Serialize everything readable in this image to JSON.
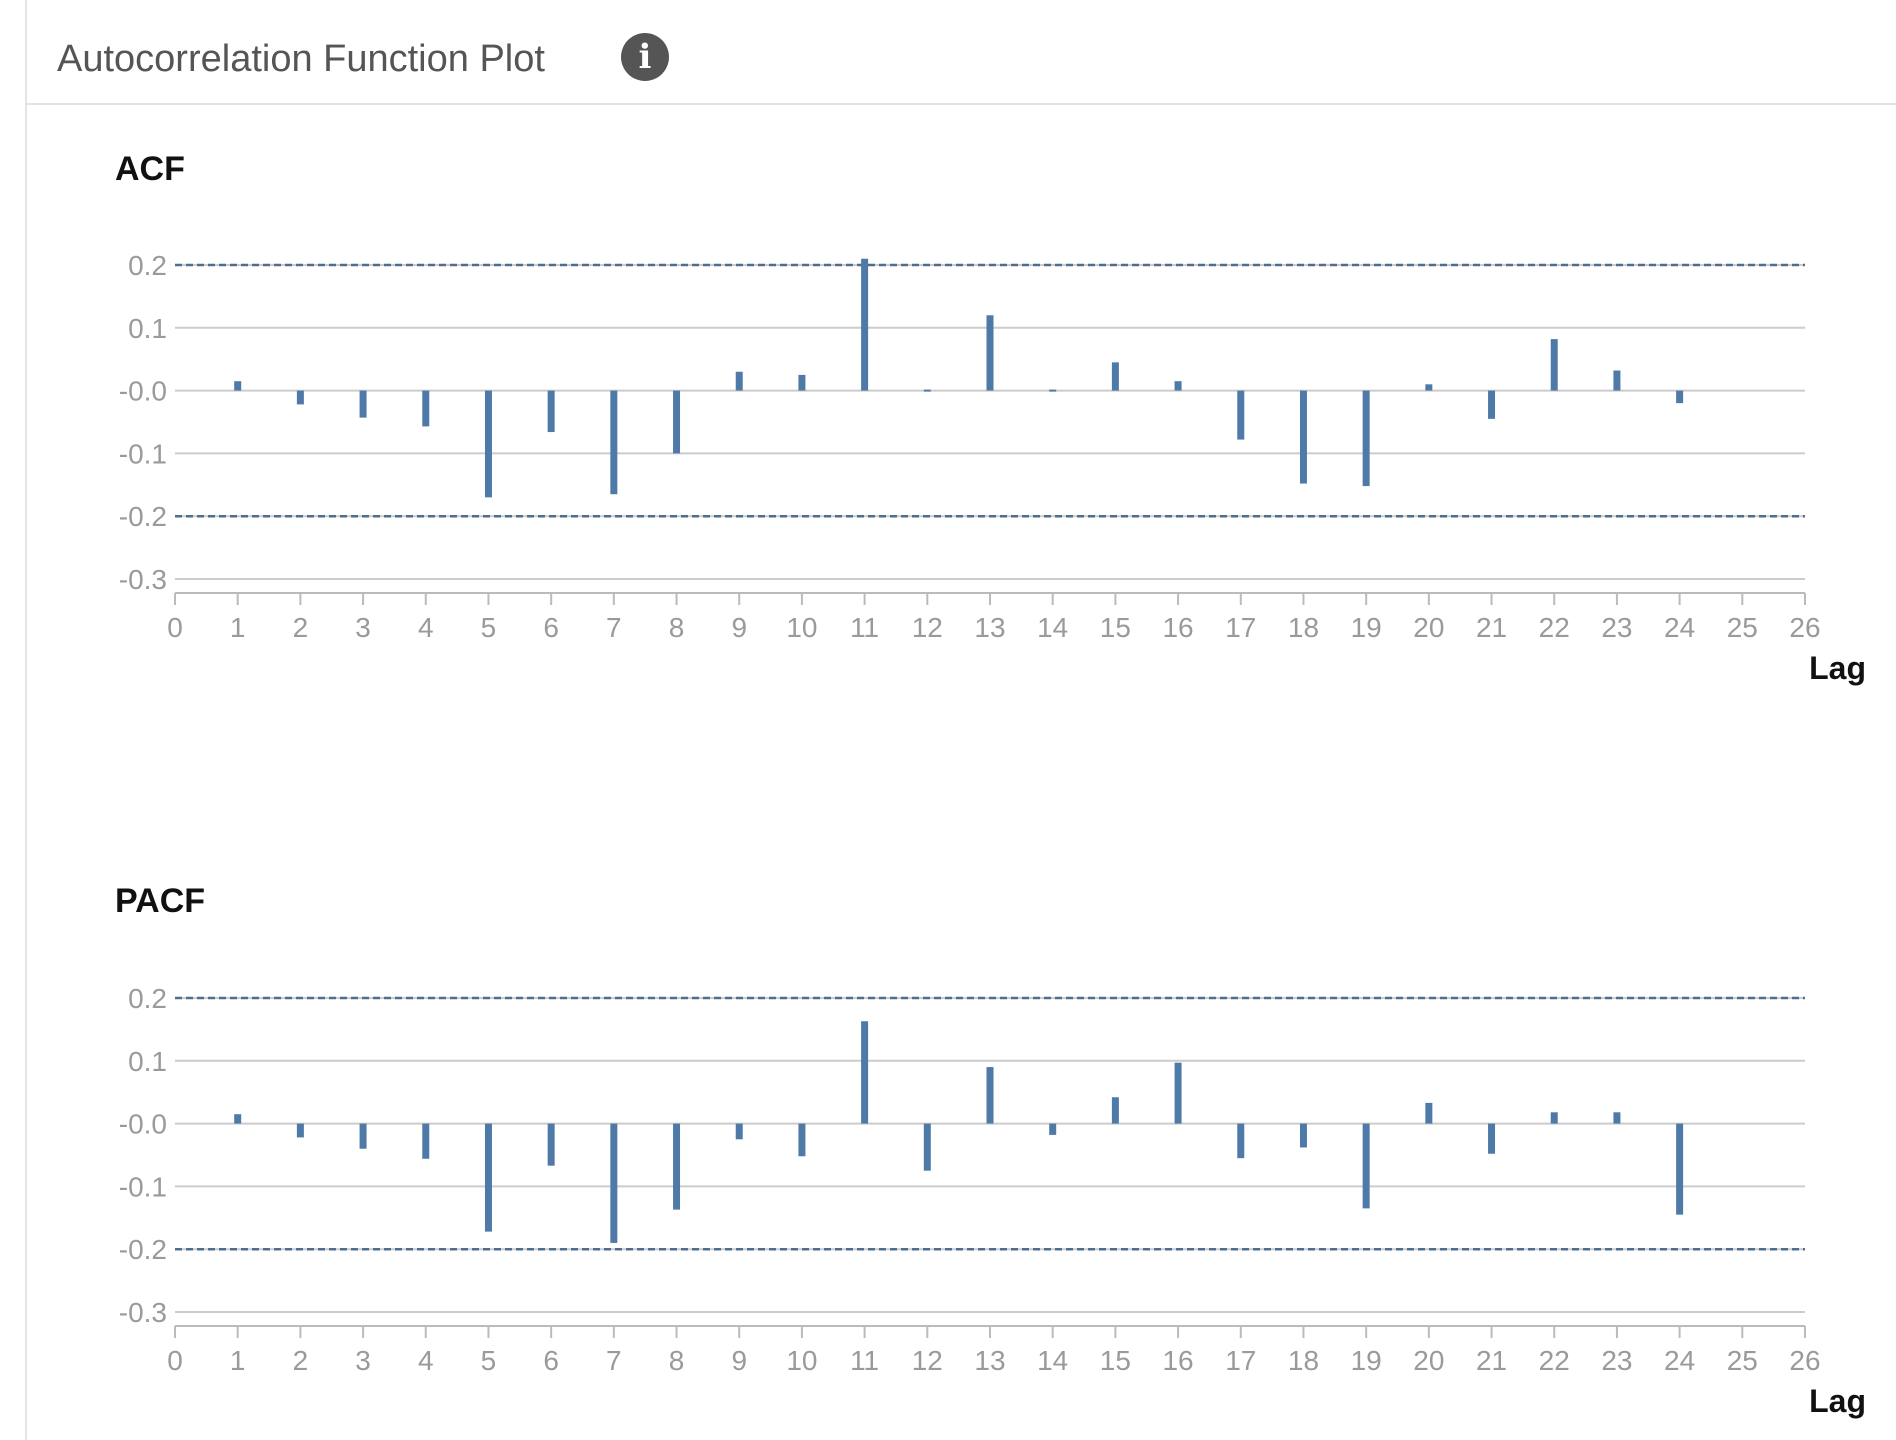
{
  "panel": {
    "title": "Autocorrelation Function Plot",
    "info_icon": "info-circle-icon"
  },
  "colors": {
    "bar": "#4f7aa8",
    "confidence_line": "#4f6d8e",
    "grid": "#cccccc",
    "tick_label": "#9a9a9a"
  },
  "chart_data": [
    {
      "type": "bar",
      "title": "ACF",
      "xlabel": "Lag",
      "ylabel": "",
      "x_ticks": [
        0,
        1,
        2,
        3,
        4,
        5,
        6,
        7,
        8,
        9,
        10,
        11,
        12,
        13,
        14,
        15,
        16,
        17,
        18,
        19,
        20,
        21,
        22,
        23,
        24,
        25,
        26
      ],
      "y_ticks": [
        0.2,
        0.1,
        -0.0,
        -0.1,
        -0.2,
        -0.3
      ],
      "y_tick_labels": [
        "0.2",
        "0.1",
        "-0.0",
        "-0.1",
        "-0.2",
        "-0.3"
      ],
      "xlim": [
        0,
        26
      ],
      "ylim": [
        -0.3,
        0.2
      ],
      "confidence_bounds": [
        0.2,
        -0.2
      ],
      "grid": true,
      "x": [
        1,
        2,
        3,
        4,
        5,
        6,
        7,
        8,
        9,
        10,
        11,
        12,
        13,
        14,
        15,
        16,
        17,
        18,
        19,
        20,
        21,
        22,
        23,
        24
      ],
      "values": [
        0.015,
        -0.022,
        -0.043,
        -0.057,
        -0.17,
        -0.066,
        -0.165,
        -0.1,
        0.03,
        0.025,
        0.21,
        0.002,
        0.12,
        0.001,
        0.045,
        0.015,
        -0.078,
        -0.148,
        -0.152,
        0.01,
        -0.045,
        0.082,
        0.032,
        -0.02
      ]
    },
    {
      "type": "bar",
      "title": "PACF",
      "xlabel": "Lag",
      "ylabel": "",
      "x_ticks": [
        0,
        1,
        2,
        3,
        4,
        5,
        6,
        7,
        8,
        9,
        10,
        11,
        12,
        13,
        14,
        15,
        16,
        17,
        18,
        19,
        20,
        21,
        22,
        23,
        24,
        25,
        26
      ],
      "y_ticks": [
        0.2,
        0.1,
        -0.0,
        -0.1,
        -0.2,
        -0.3
      ],
      "y_tick_labels": [
        "0.2",
        "0.1",
        "-0.0",
        "-0.1",
        "-0.2",
        "-0.3"
      ],
      "xlim": [
        0,
        26
      ],
      "ylim": [
        -0.3,
        0.2
      ],
      "confidence_bounds": [
        0.2,
        -0.2
      ],
      "grid": true,
      "x": [
        1,
        2,
        3,
        4,
        5,
        6,
        7,
        8,
        9,
        10,
        11,
        12,
        13,
        14,
        15,
        16,
        17,
        18,
        19,
        20,
        21,
        22,
        23,
        24
      ],
      "values": [
        0.015,
        -0.022,
        -0.04,
        -0.056,
        -0.172,
        -0.067,
        -0.19,
        -0.137,
        -0.025,
        -0.052,
        0.163,
        -0.075,
        0.09,
        -0.018,
        0.042,
        0.097,
        -0.055,
        -0.038,
        -0.135,
        0.033,
        -0.048,
        0.018,
        0.018,
        -0.145
      ]
    }
  ]
}
